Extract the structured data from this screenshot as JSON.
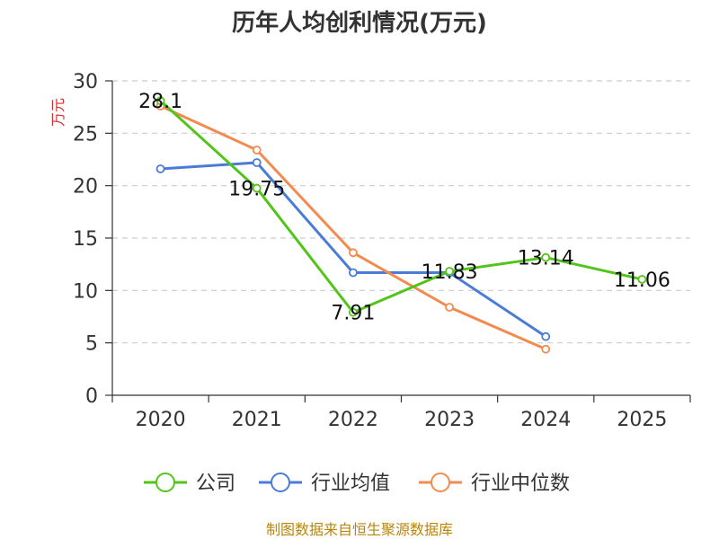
{
  "chart_data": {
    "type": "line",
    "title": "历年人均创利情况(万元)",
    "ylabel": "万元",
    "xlabel": "",
    "ylim": [
      0,
      30
    ],
    "yticks": [
      0,
      5,
      10,
      15,
      20,
      25,
      30
    ],
    "categories": [
      "2020",
      "2021",
      "2022",
      "2023",
      "2024",
      "2025"
    ],
    "grid": true,
    "legend_position": "bottom",
    "series": [
      {
        "name": "公司",
        "color": "#52c41a",
        "values": [
          28.1,
          19.75,
          7.91,
          11.83,
          13.14,
          11.06
        ],
        "labels": [
          "28.1",
          "19.75",
          "7.91",
          "11.83",
          "13.14",
          "11.06"
        ]
      },
      {
        "name": "行业均值",
        "color": "#4a7bd8",
        "values": [
          21.6,
          22.2,
          11.7,
          11.7,
          5.6,
          null
        ]
      },
      {
        "name": "行业中位数",
        "color": "#f28b50",
        "values": [
          27.6,
          23.4,
          13.6,
          8.4,
          4.4,
          null
        ]
      }
    ]
  },
  "source": "制图数据来自恒生聚源数据库"
}
